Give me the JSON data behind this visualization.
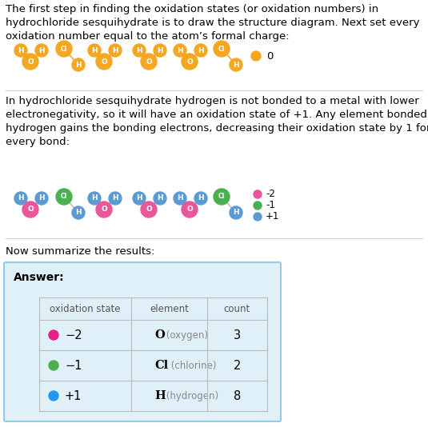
{
  "title_text": "The first step in finding the oxidation states (or oxidation numbers) in\nhydrochloride sesquihydrate is to draw the structure diagram. Next set every\noxidation number equal to the atom’s formal charge:",
  "section2_text": "In hydrochloride sesquihydrate hydrogen is not bonded to a metal with lower\nelectronegativity, so it will have an oxidation state of +1. Any element bonded to\nhydrogen gains the bonding electrons, decreasing their oxidation state by 1 for\nevery bond:",
  "section3_text": "Now summarize the results:",
  "answer_label": "Answer:",
  "col_headers": [
    "oxidation state",
    "element",
    "count"
  ],
  "table_rows": [
    {
      "dot_color": "#e91e8c",
      "ox_state": "−2",
      "element_bold": "O",
      "element_light": "(oxygen)",
      "count": "3"
    },
    {
      "dot_color": "#4caf50",
      "ox_state": "−1",
      "element_bold": "Cl",
      "element_light": "(chlorine)",
      "count": "2"
    },
    {
      "dot_color": "#2196f3",
      "ox_state": "+1",
      "element_bold": "H",
      "element_light": "(hydrogen)",
      "count": "8"
    }
  ],
  "orange_color": "#f5a623",
  "pink_color": "#e8579a",
  "green_color": "#4caf50",
  "blue_color": "#5b9bd5",
  "bg_color": "#ffffff",
  "box_bg": "#dff0f8",
  "box_border": "#90cde8",
  "separator_color": "#cccccc",
  "text_color": "#000000",
  "font_size_body": 9.5,
  "font_size_small": 8.5,
  "font_size_atom": 6.5
}
